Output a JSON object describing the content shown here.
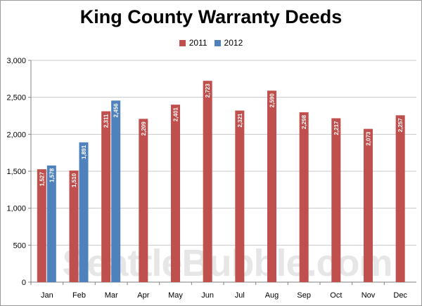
{
  "chart_data": {
    "type": "bar",
    "title": "King County Warranty Deeds",
    "watermark": "SeattleBubble.com",
    "categories": [
      "Jan",
      "Feb",
      "Mar",
      "Apr",
      "May",
      "Jun",
      "Jul",
      "Aug",
      "Sep",
      "Oct",
      "Nov",
      "Dec"
    ],
    "series": [
      {
        "name": "2011",
        "color": "#c0504d",
        "values": [
          1527,
          1510,
          2311,
          2209,
          2401,
          2723,
          2321,
          2590,
          2298,
          2217,
          2073,
          2257
        ],
        "labels": [
          "1,527",
          "1,510",
          "2,311",
          "2,209",
          "2,401",
          "2,723",
          "2,321",
          "2,590",
          "2,298",
          "2,217",
          "2,073",
          "2,257"
        ]
      },
      {
        "name": "2012",
        "color": "#4f81bd",
        "values": [
          1578,
          1891,
          2456,
          null,
          null,
          null,
          null,
          null,
          null,
          null,
          null,
          null
        ],
        "labels": [
          "1,578",
          "1,891",
          "2,456",
          null,
          null,
          null,
          null,
          null,
          null,
          null,
          null,
          null
        ]
      }
    ],
    "ylim": [
      0,
      3000
    ],
    "yticks": [
      0,
      500,
      1000,
      1500,
      2000,
      2500,
      3000
    ],
    "ytick_labels": [
      "0",
      "500",
      "1,000",
      "1,500",
      "2,000",
      "2,500",
      "3,000"
    ],
    "grid": true,
    "legend": "top-center",
    "xlabel": "",
    "ylabel": ""
  }
}
